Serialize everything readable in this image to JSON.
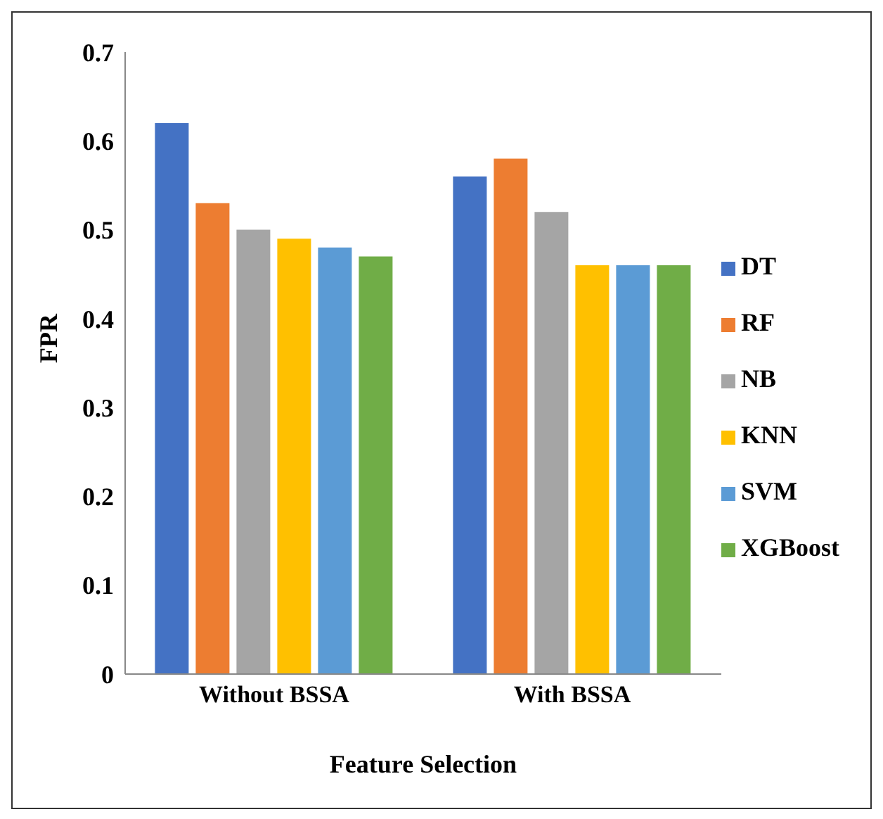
{
  "chart_data": {
    "type": "bar",
    "xlabel": "Feature Selection",
    "ylabel": "FPR",
    "categories": [
      "Without BSSA",
      "With BSSA"
    ],
    "series": [
      {
        "name": "DT",
        "color": "#4472c4",
        "values": [
          0.62,
          0.56
        ]
      },
      {
        "name": "RF",
        "color": "#ed7d31",
        "values": [
          0.53,
          0.58
        ]
      },
      {
        "name": "NB",
        "color": "#a5a5a5",
        "values": [
          0.5,
          0.52
        ]
      },
      {
        "name": "KNN",
        "color": "#ffc000",
        "values": [
          0.49,
          0.46
        ]
      },
      {
        "name": "SVM",
        "color": "#5b9bd5",
        "values": [
          0.48,
          0.46
        ]
      },
      {
        "name": "XGBoost",
        "color": "#70ad47",
        "values": [
          0.47,
          0.46
        ]
      }
    ],
    "ylim": [
      0,
      0.7
    ],
    "yticks": [
      0,
      0.1,
      0.2,
      0.3,
      0.4,
      0.5,
      0.6,
      0.7
    ],
    "grid": false,
    "legend": "right"
  }
}
